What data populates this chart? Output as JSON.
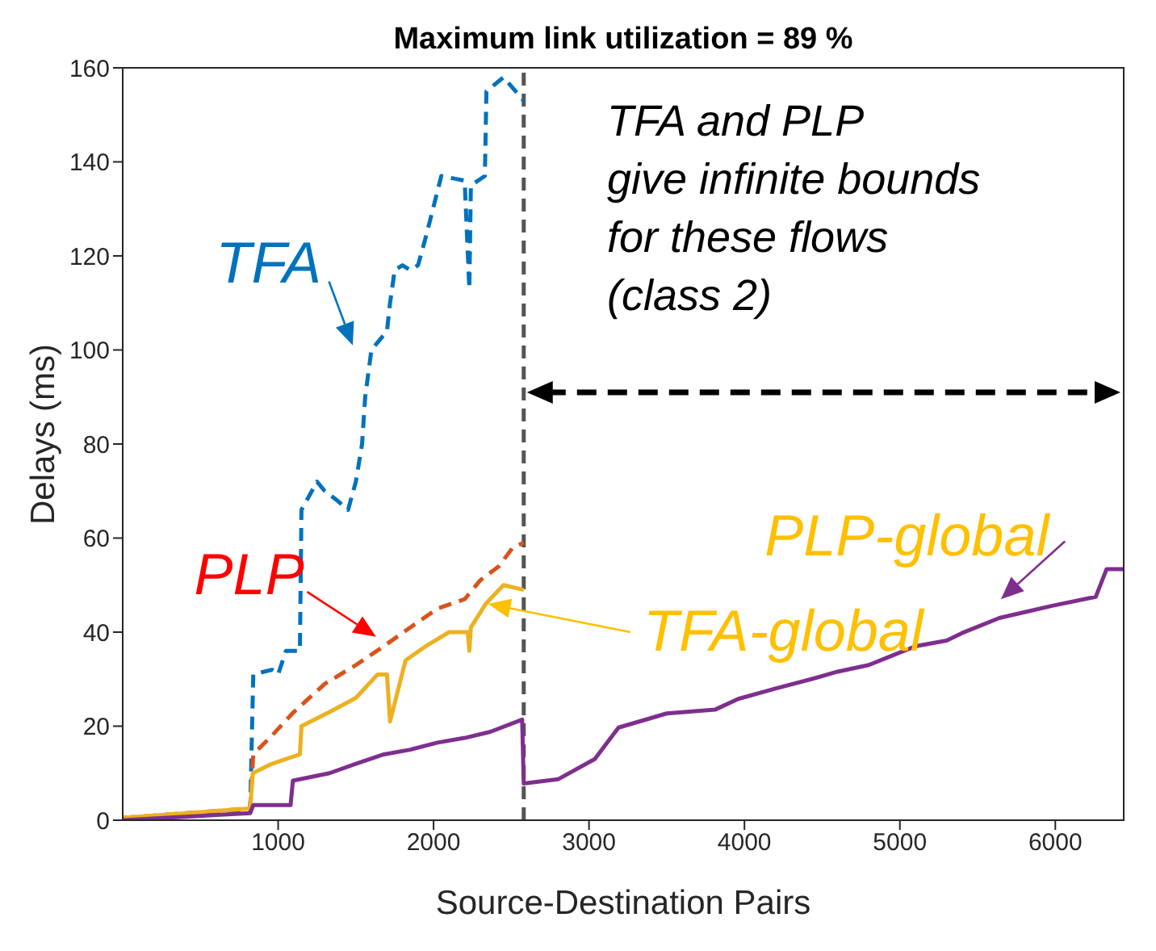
{
  "chart_data": {
    "type": "line",
    "title": "Maximum link utilization = 89 %",
    "xlabel": "Source-Destination Pairs",
    "ylabel": "Delays (ms)",
    "xlim": [
      0,
      6440
    ],
    "xticks": [
      1000,
      2000,
      3000,
      4000,
      5000,
      6000
    ],
    "ylim": [
      0,
      160
    ],
    "yticks": [
      0,
      20,
      40,
      60,
      80,
      100,
      120,
      140,
      160
    ],
    "marker": "none",
    "series": [
      {
        "color": "#0072bd",
        "line_style": "dashed",
        "x": [
          0,
          820,
          840,
          960,
          1000,
          1050,
          1140,
          1150,
          1250,
          1300,
          1380,
          1450,
          1500,
          1540,
          1560,
          1600,
          1650,
          1700,
          1720,
          1750,
          1800,
          1850,
          1900,
          1950,
          2050,
          2200,
          2230,
          2240,
          2330,
          2340,
          2450,
          2580
        ],
        "values": [
          0.5,
          1.8,
          31,
          32,
          31,
          36,
          36,
          66,
          72,
          70,
          68,
          66,
          72,
          80,
          90,
          100,
          102,
          104,
          110,
          117,
          118,
          117,
          118,
          124,
          137,
          136,
          113,
          135,
          137,
          155,
          158,
          153
        ]
      },
      {
        "color": "#d95319",
        "line_style": "dashed",
        "x": [
          0,
          820,
          840,
          960,
          1100,
          1300,
          1500,
          1680,
          1850,
          2025,
          2200,
          2300,
          2420,
          2510,
          2580
        ],
        "values": [
          0.5,
          2.5,
          14,
          18,
          23,
          29,
          33,
          37,
          41,
          45,
          47,
          51,
          54,
          58,
          59
        ]
      },
      {
        "color": "#edb120",
        "line_style": "solid",
        "x": [
          0,
          820,
          837,
          960,
          1140,
          1150,
          1330,
          1500,
          1640,
          1700,
          1720,
          1820,
          1950,
          2100,
          2220,
          2230,
          2240,
          2335,
          2450,
          2580
        ],
        "values": [
          0.5,
          2.5,
          10,
          12,
          14,
          20,
          23,
          26,
          31,
          31,
          21,
          34,
          37,
          40,
          40,
          36,
          41,
          46,
          50,
          49
        ]
      },
      {
        "color": "#7e2f8e",
        "line_style": "solid",
        "x": [
          0,
          820,
          840,
          1080,
          1095,
          1330,
          1500,
          1680,
          1850,
          2025,
          2200,
          2365,
          2570,
          2580,
          2800,
          3037,
          3190,
          3500,
          3810,
          3960,
          4200,
          4430,
          4600,
          4800,
          4950,
          5100,
          5300,
          5400,
          5640,
          5980,
          6260,
          6330,
          6440
        ],
        "values": [
          0,
          1.5,
          3.2,
          3.2,
          8.4,
          10,
          12,
          14,
          15,
          16.5,
          17.5,
          18.8,
          21.4,
          7.8,
          8.7,
          13,
          19.7,
          22.7,
          23.5,
          25.8,
          28,
          30,
          31.6,
          33,
          35,
          37,
          38.2,
          39.8,
          43,
          45.6,
          47.5,
          53.4,
          53.4
        ]
      }
    ],
    "ref_lines": [
      {
        "axis": "x",
        "value": 2580,
        "color": "#555555",
        "line_style": "dashed"
      }
    ],
    "annotations": [
      "TFA",
      "PLP",
      "TFA-global",
      "PLP-global",
      "TFA and PLP\ngive infinite bounds\nfor these flows\n(class 2)"
    ]
  }
}
